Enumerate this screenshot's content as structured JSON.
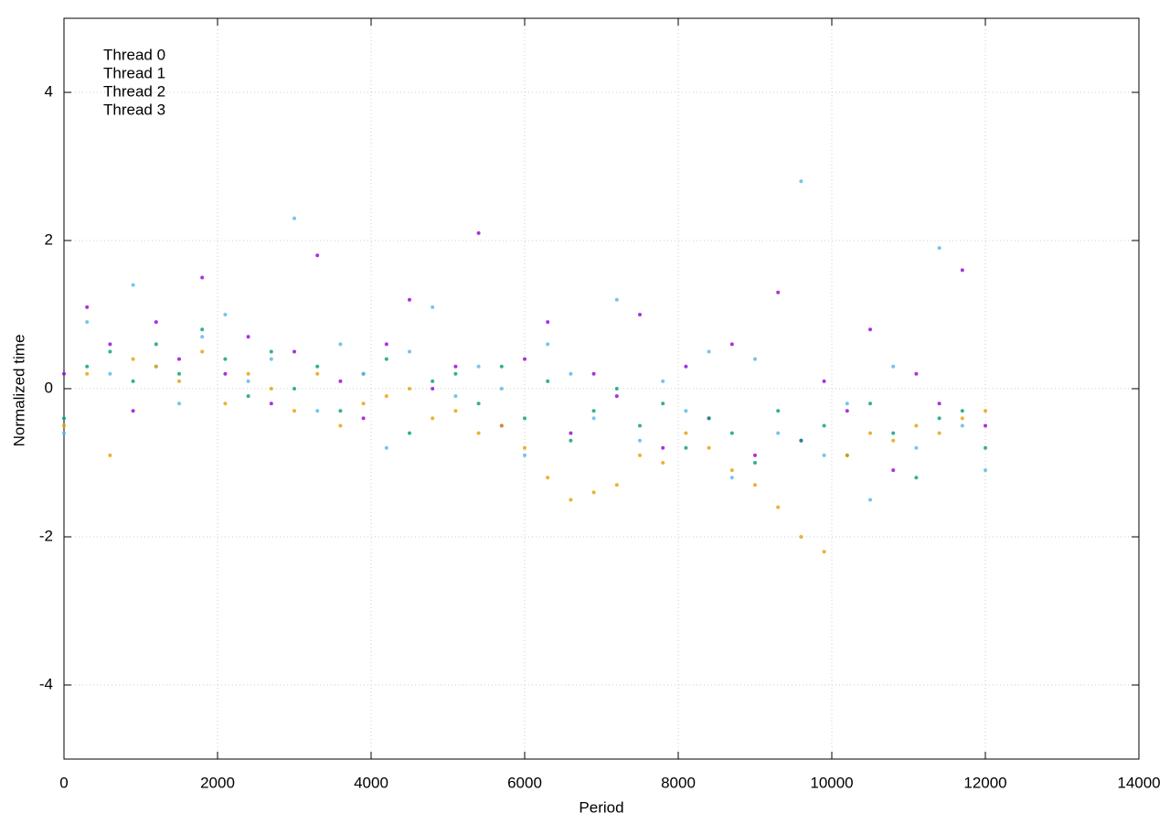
{
  "chart_data": {
    "type": "scatter",
    "x_label": "Period",
    "y_label": "Normalized time",
    "x": [
      0,
      300,
      600,
      900,
      1200,
      1500,
      1800,
      2100,
      2400,
      2700,
      3000,
      3300,
      3600,
      3900,
      4200,
      4500,
      4800,
      5100,
      5400,
      5700,
      6000,
      6300,
      6600,
      6900,
      7200,
      7500,
      7800,
      8100,
      8400,
      8700,
      9000,
      9300,
      9600,
      9900,
      10200,
      10500,
      10800,
      11100,
      11400,
      11700,
      12000
    ],
    "series": [
      {
        "name": "Thread 0",
        "color": "#9400d3",
        "values": [
          0.2,
          1.1,
          0.6,
          -0.3,
          0.9,
          0.4,
          1.5,
          0.2,
          0.7,
          -0.2,
          0.5,
          1.8,
          0.1,
          -0.4,
          0.6,
          1.2,
          0.0,
          0.3,
          2.1,
          -0.5,
          0.4,
          0.9,
          -0.6,
          0.2,
          -0.1,
          1.0,
          -0.8,
          0.3,
          -0.4,
          0.6,
          -0.9,
          1.3,
          -0.7,
          0.1,
          -0.3,
          0.8,
          -1.1,
          0.2,
          -0.2,
          1.6,
          -0.5
        ]
      },
      {
        "name": "Thread 1",
        "color": "#009e73",
        "values": [
          -0.4,
          0.3,
          0.5,
          0.1,
          0.6,
          0.2,
          0.8,
          0.4,
          -0.1,
          0.5,
          0.0,
          0.3,
          -0.3,
          0.2,
          0.4,
          -0.6,
          0.1,
          0.2,
          -0.2,
          0.3,
          -0.4,
          0.1,
          -0.7,
          -0.3,
          0.0,
          -0.5,
          -0.2,
          -0.8,
          -0.4,
          -0.6,
          -1.0,
          -0.3,
          -0.7,
          -0.5,
          -0.9,
          -0.2,
          -0.6,
          -1.2,
          -0.4,
          -0.3,
          -0.8
        ]
      },
      {
        "name": "Thread 2",
        "color": "#56b4e9",
        "values": [
          -0.6,
          0.9,
          0.2,
          1.4,
          0.3,
          -0.2,
          0.7,
          1.0,
          0.1,
          0.4,
          2.3,
          -0.3,
          0.6,
          0.2,
          -0.8,
          0.5,
          1.1,
          -0.1,
          0.3,
          0.0,
          -0.9,
          0.6,
          0.2,
          -0.4,
          1.2,
          -0.7,
          0.1,
          -0.3,
          0.5,
          -1.2,
          0.4,
          -0.6,
          2.8,
          -0.9,
          -0.2,
          -1.5,
          0.3,
          -0.8,
          1.9,
          -0.5,
          -1.1
        ]
      },
      {
        "name": "Thread 3",
        "color": "#e69f00",
        "values": [
          -0.5,
          0.2,
          -0.9,
          0.4,
          0.3,
          0.1,
          0.5,
          -0.2,
          0.2,
          0.0,
          -0.3,
          0.2,
          -0.5,
          -0.2,
          -0.1,
          0.0,
          -0.4,
          -0.3,
          -0.6,
          -0.5,
          -0.8,
          -1.2,
          -1.5,
          -1.4,
          -1.3,
          -0.9,
          -1.0,
          -0.6,
          -0.8,
          -1.1,
          -1.3,
          -1.6,
          -2.0,
          -2.2,
          -0.9,
          -0.6,
          -0.7,
          -0.5,
          -0.6,
          -0.4,
          -0.3
        ]
      }
    ],
    "xlim": [
      0,
      14000
    ],
    "xticks": [
      0,
      2000,
      4000,
      6000,
      8000,
      10000,
      12000,
      14000
    ],
    "ylim": [
      -5,
      5
    ],
    "yticks": [
      -4,
      -2,
      0,
      2,
      4
    ],
    "grid": true,
    "legend": "top-left"
  }
}
